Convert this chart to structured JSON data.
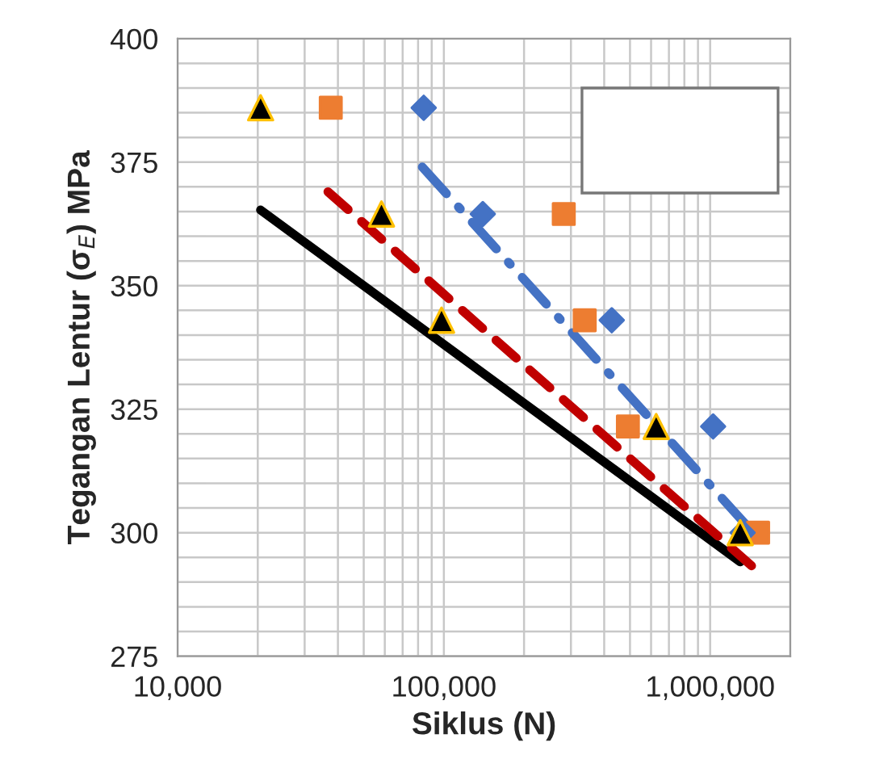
{
  "chart_data": {
    "type": "scatter",
    "xlabel": "Siklus (N)",
    "ylabel": "Tegangan Lentur (σ$_{E}$) MPa",
    "log": "x",
    "grid": true,
    "xlim": [
      10000,
      2000000
    ],
    "xticks": [
      {
        "value": 10000,
        "label": "10,000"
      },
      {
        "value": 100000,
        "label": "100,000"
      },
      {
        "value": 1000000,
        "label": "1,000,000"
      }
    ],
    "ylim": [
      275,
      400
    ],
    "yticks": [
      275,
      300,
      325,
      350,
      375,
      400
    ],
    "series": [
      {
        "marker": "triangle",
        "color": "#000000",
        "x": [
          20500,
          58300,
          98000,
          627000,
          1297000
        ],
        "values": [
          386,
          364.5,
          343,
          321.5,
          300
        ]
      },
      {
        "marker": "square",
        "color": "#ed7d31",
        "x": [
          37600,
          282000,
          338000,
          491000,
          1514000
        ],
        "values": [
          386,
          364.5,
          343,
          321.5,
          300
        ]
      },
      {
        "marker": "diamond",
        "color": "#4472c4",
        "x": [
          84000,
          140000,
          427000,
          1026000,
          1324000
        ],
        "values": [
          386,
          364.5,
          343,
          321.5,
          300
        ]
      },
      {
        "type": "line",
        "line_style": "solid",
        "color": "#000000",
        "x": [
          20500,
          1297000
        ],
        "values": [
          365.3,
          294.1
        ]
      },
      {
        "type": "line",
        "line_style": "dashed",
        "color": "#c00000",
        "x": [
          36700,
          1430000
        ],
        "values": [
          369,
          293.3
        ]
      },
      {
        "type": "line",
        "line_style": "dashdot",
        "color": "#4472c4",
        "x": [
          83000,
          1450000
        ],
        "values": [
          374,
          300
        ]
      }
    ]
  }
}
